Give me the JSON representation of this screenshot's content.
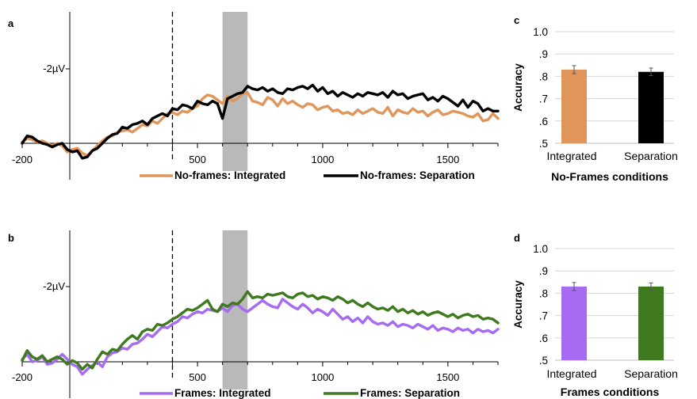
{
  "chart_data": [
    {
      "type": "line",
      "panel_label": "a",
      "x": [
        -200,
        -180,
        -160,
        -140,
        -120,
        -100,
        -80,
        -60,
        -40,
        -20,
        0,
        20,
        40,
        60,
        80,
        100,
        120,
        140,
        160,
        180,
        200,
        220,
        240,
        260,
        280,
        300,
        320,
        340,
        360,
        380,
        400,
        420,
        440,
        460,
        480,
        500,
        520,
        540,
        560,
        580,
        600,
        620,
        640,
        660,
        680,
        700,
        720,
        740,
        760,
        780,
        800,
        820,
        840,
        860,
        880,
        900,
        920,
        940,
        960,
        980,
        1000,
        1020,
        1040,
        1060,
        1080,
        1100,
        1120,
        1140,
        1160,
        1180,
        1200,
        1220,
        1240,
        1260,
        1280,
        1300,
        1320,
        1340,
        1360,
        1380,
        1400,
        1420,
        1440,
        1460,
        1480,
        1500,
        1520,
        1540,
        1560,
        1580,
        1600,
        1620,
        1640,
        1660,
        1680,
        1700
      ],
      "series": [
        {
          "name": "No-frames: Integrated",
          "color": "#e0955a",
          "values": [
            0.05,
            0.2,
            0.15,
            0.05,
            0.1,
            0.0,
            -0.1,
            0.0,
            -0.1,
            -0.35,
            -0.25,
            -0.2,
            -0.4,
            -0.5,
            -0.3,
            -0.1,
            0.1,
            0.25,
            0.3,
            0.45,
            0.5,
            0.55,
            0.45,
            0.6,
            0.75,
            0.7,
            0.9,
            0.8,
            1.0,
            1.2,
            1.25,
            1.15,
            1.3,
            1.25,
            1.4,
            1.5,
            1.8,
            1.95,
            1.9,
            1.75,
            1.6,
            1.9,
            1.7,
            1.8,
            2.0,
            2.05,
            1.7,
            1.65,
            1.55,
            1.85,
            1.75,
            1.5,
            1.8,
            1.6,
            1.7,
            1.55,
            1.45,
            1.6,
            1.55,
            1.35,
            1.45,
            1.5,
            1.3,
            1.35,
            1.2,
            1.25,
            1.15,
            1.35,
            1.2,
            1.3,
            1.4,
            1.25,
            1.2,
            1.45,
            1.1,
            1.35,
            1.25,
            1.2,
            1.4,
            1.25,
            1.3,
            1.1,
            1.25,
            1.35,
            1.15,
            1.2,
            1.3,
            1.25,
            1.2,
            1.1,
            1.05,
            1.2,
            0.9,
            0.95,
            1.2,
            1.0
          ]
        },
        {
          "name": "No-frames: Separation",
          "color": "#000000",
          "values": [
            0.0,
            0.3,
            0.25,
            0.1,
            0.0,
            -0.05,
            -0.15,
            -0.05,
            0.0,
            -0.25,
            -0.35,
            -0.3,
            -0.6,
            -0.55,
            -0.3,
            -0.2,
            0.0,
            0.2,
            0.35,
            0.4,
            0.65,
            0.6,
            0.75,
            0.8,
            0.9,
            0.75,
            1.0,
            1.1,
            1.2,
            1.1,
            1.4,
            1.35,
            1.55,
            1.5,
            1.4,
            1.7,
            1.6,
            1.55,
            1.7,
            1.6,
            1.0,
            1.8,
            1.9,
            2.0,
            2.05,
            2.3,
            2.2,
            2.15,
            2.25,
            2.1,
            2.2,
            2.05,
            2.0,
            2.2,
            2.15,
            2.25,
            2.3,
            2.2,
            2.35,
            2.1,
            2.25,
            2.0,
            2.1,
            1.9,
            2.05,
            1.95,
            1.85,
            2.0,
            1.9,
            2.05,
            2.0,
            1.95,
            2.05,
            1.85,
            2.1,
            1.95,
            2.0,
            1.8,
            1.9,
            1.95,
            2.0,
            1.75,
            1.85,
            1.7,
            1.9,
            1.8,
            1.65,
            1.5,
            1.75,
            1.45,
            1.7,
            1.6,
            1.3,
            1.4,
            1.3,
            1.3
          ]
        }
      ],
      "x_ticks": [
        -200,
        500,
        1000,
        1500
      ],
      "y_tick_label": "-2µV",
      "y_tick_value": 3,
      "vertical_dashed_line_x": 400,
      "shaded_window": [
        600,
        700
      ],
      "xlim": [
        -200,
        1700
      ],
      "ylim": [
        -1,
        4
      ],
      "legend_position": "bottom"
    },
    {
      "type": "line",
      "panel_label": "b",
      "x": [
        -200,
        -180,
        -160,
        -140,
        -120,
        -100,
        -80,
        -60,
        -40,
        -20,
        0,
        20,
        40,
        60,
        80,
        100,
        120,
        140,
        160,
        180,
        200,
        220,
        240,
        260,
        280,
        300,
        320,
        340,
        360,
        380,
        400,
        420,
        440,
        460,
        480,
        500,
        520,
        540,
        560,
        580,
        600,
        620,
        640,
        660,
        680,
        700,
        720,
        740,
        760,
        780,
        800,
        820,
        840,
        860,
        880,
        900,
        920,
        940,
        960,
        980,
        1000,
        1020,
        1040,
        1060,
        1080,
        1100,
        1120,
        1140,
        1160,
        1180,
        1200,
        1220,
        1240,
        1260,
        1280,
        1300,
        1320,
        1340,
        1360,
        1380,
        1400,
        1420,
        1440,
        1460,
        1480,
        1500,
        1520,
        1540,
        1560,
        1580,
        1600,
        1620,
        1640,
        1660,
        1680,
        1700
      ],
      "series": [
        {
          "name": "Frames: Integrated",
          "color": "#a66bf2",
          "values": [
            0.1,
            0.3,
            0.0,
            0.05,
            0.2,
            -0.1,
            -0.05,
            0.1,
            0.3,
            0.1,
            -0.1,
            -0.2,
            -0.5,
            -0.3,
            -0.15,
            0.0,
            -0.2,
            0.2,
            0.35,
            0.4,
            0.55,
            0.5,
            0.7,
            0.75,
            0.9,
            1.1,
            1.0,
            1.2,
            1.4,
            1.35,
            1.5,
            1.6,
            1.8,
            1.75,
            1.9,
            2.0,
            1.95,
            2.1,
            2.05,
            2.0,
            2.15,
            2.0,
            2.25,
            2.3,
            2.1,
            2.0,
            2.15,
            2.3,
            2.45,
            2.3,
            2.2,
            2.15,
            2.5,
            2.35,
            2.2,
            2.1,
            2.3,
            2.15,
            1.95,
            2.1,
            2.0,
            1.85,
            2.1,
            1.9,
            1.7,
            1.8,
            1.6,
            1.75,
            1.55,
            1.8,
            1.6,
            1.5,
            1.55,
            1.45,
            1.6,
            1.4,
            1.5,
            1.45,
            1.35,
            1.5,
            1.4,
            1.3,
            1.45,
            1.25,
            1.35,
            1.3,
            1.2,
            1.35,
            1.25,
            1.3,
            1.15,
            1.3,
            1.2,
            1.25,
            1.15,
            1.3
          ]
        },
        {
          "name": "Frames: Separation",
          "color": "#3f7a1e",
          "values": [
            0.05,
            0.45,
            0.2,
            0.1,
            0.25,
            0.0,
            0.1,
            0.2,
            0.1,
            -0.1,
            0.05,
            -0.05,
            -0.3,
            -0.1,
            -0.25,
            0.1,
            0.4,
            0.3,
            0.5,
            0.45,
            0.7,
            0.9,
            1.05,
            0.9,
            1.2,
            1.3,
            1.25,
            1.5,
            1.45,
            1.55,
            1.7,
            1.8,
            1.95,
            2.1,
            2.05,
            2.15,
            2.3,
            2.45,
            2.1,
            2.0,
            2.3,
            2.2,
            2.35,
            2.3,
            2.5,
            2.8,
            2.55,
            2.6,
            2.55,
            2.7,
            2.65,
            2.7,
            2.75,
            2.6,
            2.55,
            2.7,
            2.75,
            2.6,
            2.65,
            2.5,
            2.6,
            2.55,
            2.45,
            2.6,
            2.5,
            2.35,
            2.45,
            2.3,
            2.2,
            2.35,
            2.2,
            2.1,
            2.15,
            2.05,
            2.2,
            2.0,
            2.1,
            1.95,
            2.05,
            1.9,
            2.0,
            1.85,
            1.95,
            2.0,
            1.9,
            1.8,
            1.9,
            1.75,
            1.85,
            1.9,
            1.8,
            1.85,
            1.7,
            1.75,
            1.7,
            1.55
          ]
        }
      ],
      "x_ticks": [
        -200,
        500,
        1000,
        1500
      ],
      "y_tick_label": "-2µV",
      "y_tick_value": 3,
      "vertical_dashed_line_x": 400,
      "shaded_window": [
        600,
        700
      ],
      "xlim": [
        -200,
        1700
      ],
      "ylim": [
        -1,
        4
      ],
      "legend_position": "bottom"
    },
    {
      "type": "bar",
      "panel_label": "c",
      "categories": [
        "Integrated",
        "Separation"
      ],
      "values": [
        0.83,
        0.82
      ],
      "errors": [
        0.018,
        0.017
      ],
      "colors": [
        "#e0955a",
        "#000000"
      ],
      "ylabel": "Accuracy",
      "xlabel": "No-Frames conditions",
      "ylim": [
        0.5,
        1.0
      ],
      "y_ticks": [
        0.5,
        0.6,
        0.7,
        0.8,
        0.9,
        1.0
      ],
      "y_tick_labels": [
        ".5",
        ".6",
        ".7",
        ".8",
        ".9",
        "1.0"
      ],
      "grid": true
    },
    {
      "type": "bar",
      "panel_label": "d",
      "categories": [
        "Integrated",
        "Separation"
      ],
      "values": [
        0.83,
        0.83
      ],
      "errors": [
        0.018,
        0.016
      ],
      "colors": [
        "#a66bf2",
        "#3f7a1e"
      ],
      "ylabel": "Accuracy",
      "xlabel": "Frames conditions",
      "ylim": [
        0.5,
        1.0
      ],
      "y_ticks": [
        0.5,
        0.6,
        0.7,
        0.8,
        0.9,
        1.0
      ],
      "y_tick_labels": [
        ".5",
        ".6",
        ".7",
        ".8",
        ".9",
        "1.0"
      ],
      "grid": true
    }
  ]
}
